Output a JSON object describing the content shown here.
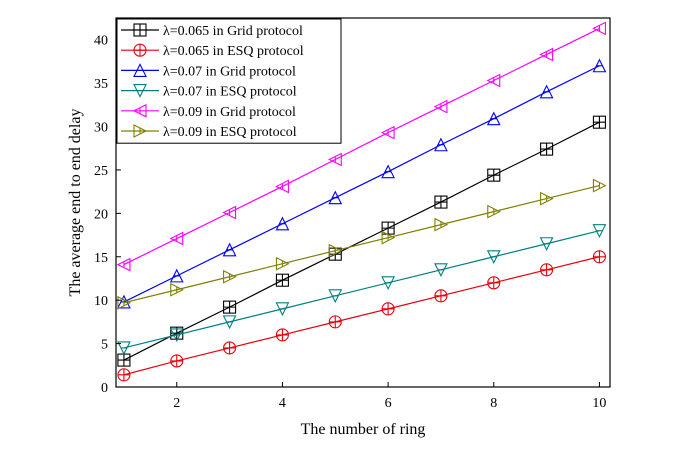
{
  "chart_data": {
    "type": "line",
    "title": "",
    "xlabel": "The number of ring",
    "ylabel": "The average end to end delay",
    "xlim": [
      0.85,
      10.2
    ],
    "ylim": [
      0,
      42.5
    ],
    "x_ticks": [
      2,
      4,
      6,
      8,
      10
    ],
    "y_ticks": [
      0,
      5,
      10,
      15,
      20,
      25,
      30,
      35,
      40
    ],
    "grid": false,
    "legend_position": "top-left",
    "x": [
      1,
      2,
      3,
      4,
      5,
      6,
      7,
      8,
      9,
      10
    ],
    "series": [
      {
        "name": "λ=0.065 in Grid protocol",
        "marker": "square",
        "color": "#000000",
        "values": [
          3.1,
          6.2,
          9.2,
          12.3,
          15.3,
          18.3,
          21.3,
          24.4,
          27.4,
          30.5
        ]
      },
      {
        "name": "λ=0.065 in ESQ protocol",
        "marker": "circle",
        "color": "#e8000b",
        "values": [
          1.4,
          3.0,
          4.5,
          6.0,
          7.5,
          9.0,
          10.5,
          12.0,
          13.5,
          15.0
        ]
      },
      {
        "name": "λ=0.07 in Grid protocol",
        "marker": "triangle-up",
        "color": "#0000ff",
        "values": [
          9.8,
          12.8,
          15.8,
          18.8,
          21.8,
          24.8,
          27.9,
          30.9,
          34.0,
          37.0
        ]
      },
      {
        "name": "λ=0.07 in ESQ protocol",
        "marker": "triangle-down",
        "color": "#008080",
        "values": [
          4.5,
          6.0,
          7.5,
          9.0,
          10.5,
          12.0,
          13.5,
          15.0,
          16.5,
          18.0
        ]
      },
      {
        "name": "λ=0.09 in Grid protocol",
        "marker": "triangle-left",
        "color": "#ff00ff",
        "values": [
          14.1,
          17.1,
          20.1,
          23.1,
          26.2,
          29.3,
          32.3,
          35.3,
          38.3,
          41.3
        ]
      },
      {
        "name": "λ=0.09 in ESQ protocol",
        "marker": "triangle-right",
        "color": "#808000",
        "values": [
          9.7,
          11.2,
          12.7,
          14.2,
          15.7,
          17.2,
          18.7,
          20.2,
          21.7,
          23.2
        ]
      }
    ]
  }
}
